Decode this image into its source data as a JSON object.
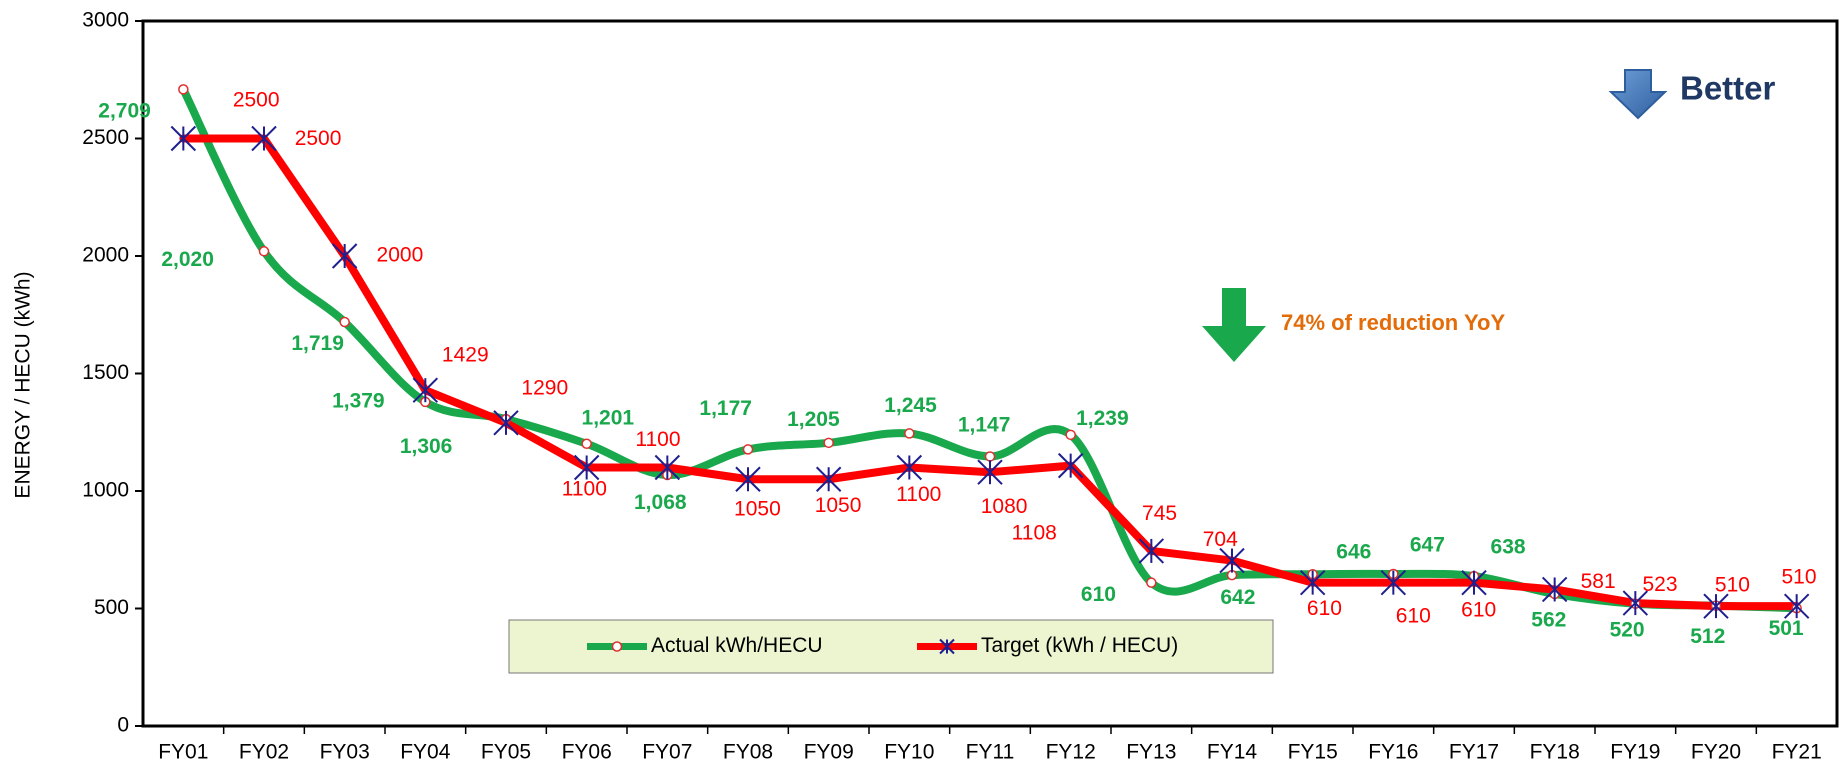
{
  "chart_data": {
    "type": "line",
    "y_label": "ENERGY /  HECU (kWh)",
    "categories": [
      "FY01",
      "FY02",
      "FY03",
      "FY04",
      "FY05",
      "FY06",
      "FY07",
      "FY08",
      "FY09",
      "FY10",
      "FY11",
      "FY12",
      "FY13",
      "FY14",
      "FY15",
      "FY16",
      "FY17",
      "FY18",
      "FY19",
      "FY20",
      "FY21"
    ],
    "series": [
      {
        "name": "Actual kWh/HECU",
        "color": "#1aa84c",
        "label_color": "#1aa84c",
        "smooth": true,
        "values": [
          2709,
          2020,
          1719,
          1379,
          1306,
          1201,
          1068,
          1177,
          1205,
          1245,
          1147,
          1239,
          610,
          642,
          646,
          647,
          638,
          562,
          520,
          512,
          501
        ],
        "value_labels": [
          "2,709",
          "2,020",
          "1,719",
          "1,379",
          "1,306",
          "1,201",
          "1,068",
          "1,177",
          "1,205",
          "1,245",
          "1,147",
          "1,239",
          "610",
          "642",
          "646",
          "647",
          "638",
          "562",
          "520",
          "512",
          "501"
        ]
      },
      {
        "name": "Target (kWh / HECU)",
        "color": "#ff0000",
        "label_color": "#ff0000",
        "smooth": false,
        "values": [
          2500,
          2500,
          2000,
          1429,
          1290,
          1100,
          1100,
          1050,
          1050,
          1100,
          1080,
          1108,
          745,
          704,
          610,
          610,
          610,
          581,
          523,
          510,
          510
        ]
      }
    ],
    "ylim": [
      0,
      3000
    ],
    "yticks": [
      0,
      500,
      1000,
      1500,
      2000,
      2500,
      3000
    ],
    "legend": "bottom-center",
    "annotations": [
      "Better",
      "74% of reduction YoY"
    ]
  }
}
